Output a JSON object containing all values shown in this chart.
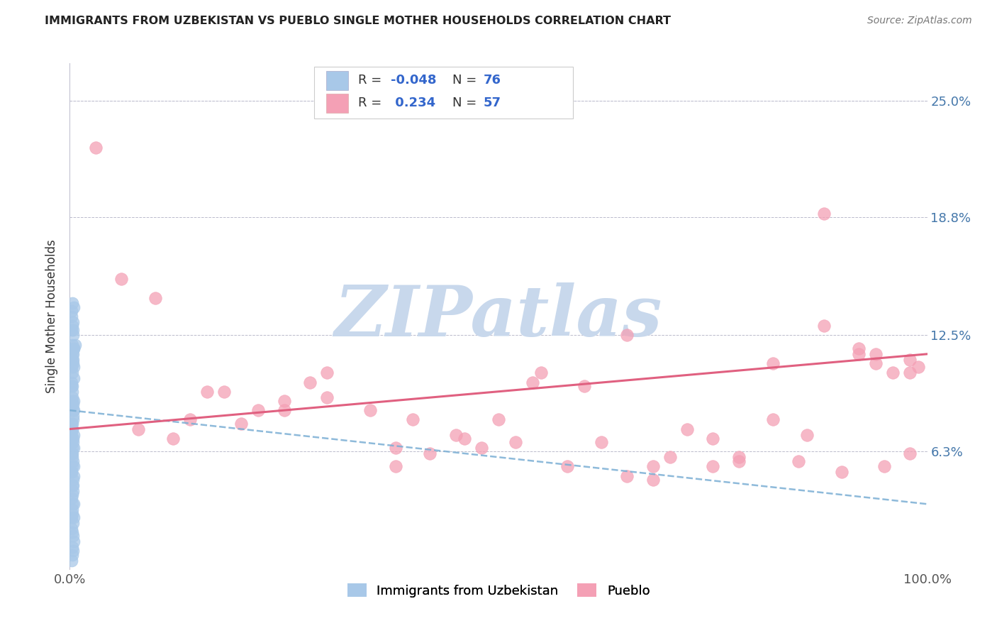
{
  "title": "IMMIGRANTS FROM UZBEKISTAN VS PUEBLO SINGLE MOTHER HOUSEHOLDS CORRELATION CHART",
  "source": "Source: ZipAtlas.com",
  "ylabel": "Single Mother Households",
  "xlim": [
    0,
    100
  ],
  "ylim": [
    0,
    27
  ],
  "ytick_vals": [
    6.3,
    12.5,
    18.8,
    25.0
  ],
  "ytick_labels": [
    "6.3%",
    "12.5%",
    "18.8%",
    "25.0%"
  ],
  "blue_color": "#A8C8E8",
  "pink_color": "#F4A0B5",
  "trend_blue_color": "#7aaed4",
  "trend_pink_color": "#E06080",
  "watermark_color": "#C8D8EC",
  "blue_scatter_x": [
    0.2,
    0.3,
    0.4,
    0.5,
    0.6,
    0.3,
    0.2,
    0.4,
    0.5,
    0.3,
    0.4,
    0.2,
    0.3,
    0.5,
    0.4,
    0.3,
    0.2,
    0.5,
    0.4,
    0.3,
    0.2,
    0.4,
    0.3,
    0.5,
    0.2,
    0.3,
    0.4,
    0.3,
    0.2,
    0.5,
    0.4,
    0.3,
    0.2,
    0.3,
    0.4,
    0.5,
    0.3,
    0.2,
    0.4,
    0.3,
    0.5,
    0.2,
    0.4,
    0.3,
    0.2,
    0.3,
    0.5,
    0.4,
    0.3,
    0.2,
    0.4,
    0.5,
    0.3,
    0.4,
    0.2,
    0.3,
    0.5,
    0.4,
    0.3,
    0.2,
    0.4,
    0.3,
    0.5,
    0.2,
    0.3,
    0.4,
    0.5,
    0.3,
    0.2,
    0.4,
    0.3,
    0.5,
    0.2,
    0.3,
    0.4,
    0.3
  ],
  "blue_scatter_y": [
    13.5,
    13.0,
    12.5,
    14.0,
    12.0,
    11.5,
    12.8,
    13.2,
    11.8,
    10.5,
    11.0,
    10.0,
    9.5,
    10.8,
    11.2,
    9.0,
    9.8,
    8.5,
    8.0,
    7.5,
    8.8,
    7.0,
    7.8,
    6.5,
    7.2,
    6.0,
    6.8,
    5.5,
    6.2,
    5.0,
    5.8,
    4.5,
    5.2,
    4.0,
    4.8,
    3.5,
    3.0,
    3.8,
    2.5,
    2.0,
    1.5,
    2.8,
    1.0,
    0.8,
    0.5,
    1.2,
    9.0,
    8.2,
    7.5,
    6.8,
    11.5,
    10.2,
    9.8,
    8.8,
    7.8,
    6.5,
    5.5,
    4.2,
    3.2,
    2.2,
    1.8,
    12.0,
    11.8,
    10.8,
    9.2,
    8.5,
    7.2,
    6.2,
    5.2,
    4.5,
    3.5,
    2.8,
    13.8,
    14.2,
    12.8,
    11.2
  ],
  "pink_scatter_x": [
    3,
    6,
    10,
    14,
    18,
    22,
    25,
    30,
    35,
    38,
    42,
    46,
    50,
    54,
    58,
    62,
    65,
    68,
    72,
    75,
    78,
    82,
    86,
    88,
    92,
    94,
    96,
    98,
    99,
    8,
    16,
    28,
    40,
    55,
    70,
    82,
    92,
    98,
    20,
    45,
    65,
    85,
    95,
    30,
    60,
    88,
    12,
    48,
    75,
    94,
    25,
    52,
    78,
    98,
    38,
    68,
    90
  ],
  "pink_scatter_y": [
    22.5,
    15.5,
    14.5,
    8.0,
    9.5,
    8.5,
    9.0,
    10.5,
    8.5,
    6.5,
    6.2,
    7.0,
    8.0,
    10.0,
    5.5,
    6.8,
    5.0,
    5.5,
    7.5,
    7.0,
    6.0,
    8.0,
    7.2,
    13.0,
    11.5,
    11.0,
    10.5,
    11.2,
    10.8,
    7.5,
    9.5,
    10.0,
    8.0,
    10.5,
    6.0,
    11.0,
    11.8,
    10.5,
    7.8,
    7.2,
    12.5,
    5.8,
    5.5,
    9.2,
    9.8,
    19.0,
    7.0,
    6.5,
    5.5,
    11.5,
    8.5,
    6.8,
    5.8,
    6.2,
    5.5,
    4.8,
    5.2
  ],
  "blue_trend_x": [
    0,
    100
  ],
  "blue_trend_y": [
    8.5,
    3.5
  ],
  "pink_trend_x": [
    0,
    100
  ],
  "pink_trend_y": [
    7.5,
    11.5
  ],
  "legend_blue_r": "-0.048",
  "legend_blue_n": "76",
  "legend_pink_r": "0.234",
  "legend_pink_n": "57"
}
